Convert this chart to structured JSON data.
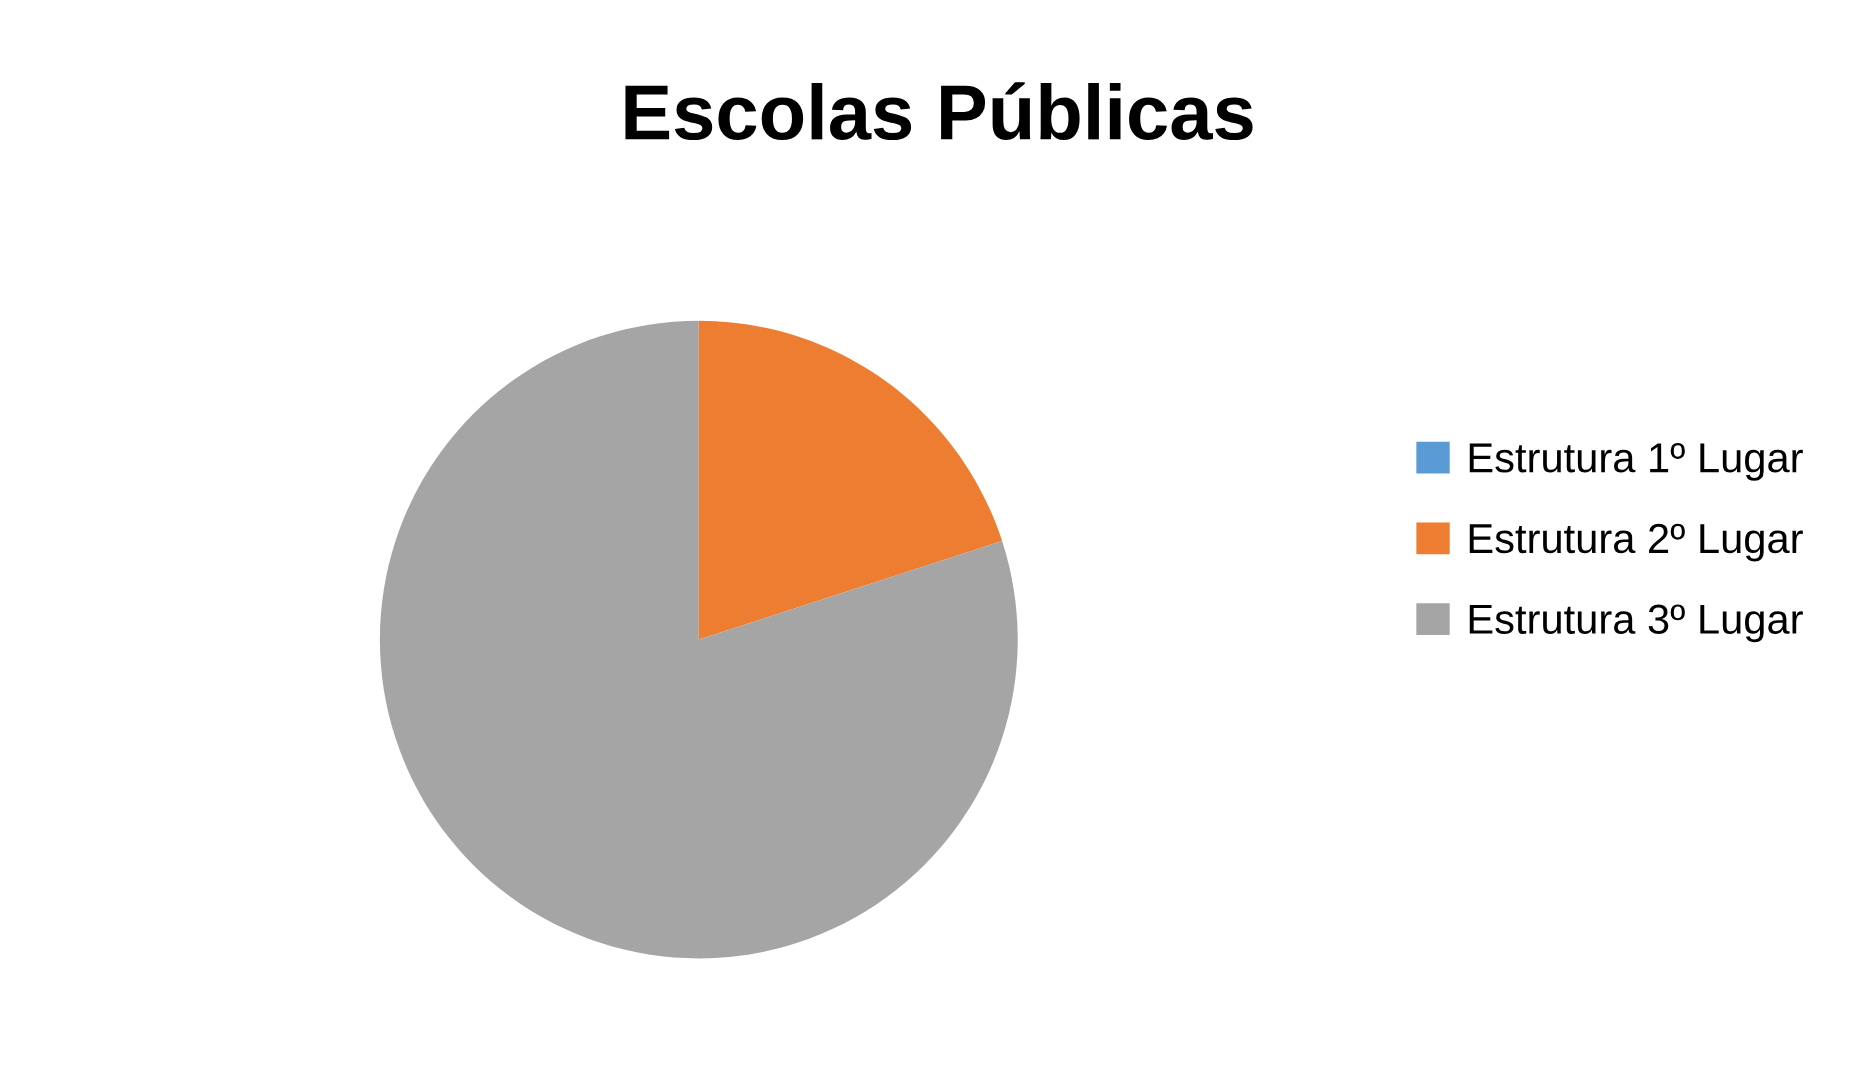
{
  "chart_data": {
    "type": "pie",
    "title": "Escolas Públicas",
    "categories": [
      "Estrutura 1º Lugar",
      "Estrutura 2º Lugar",
      "Estrutura 3º Lugar"
    ],
    "values": [
      0,
      20,
      80
    ],
    "colors": [
      "#5b9bd5",
      "#ed7d31",
      "#a5a5a5"
    ],
    "legend": "right"
  }
}
